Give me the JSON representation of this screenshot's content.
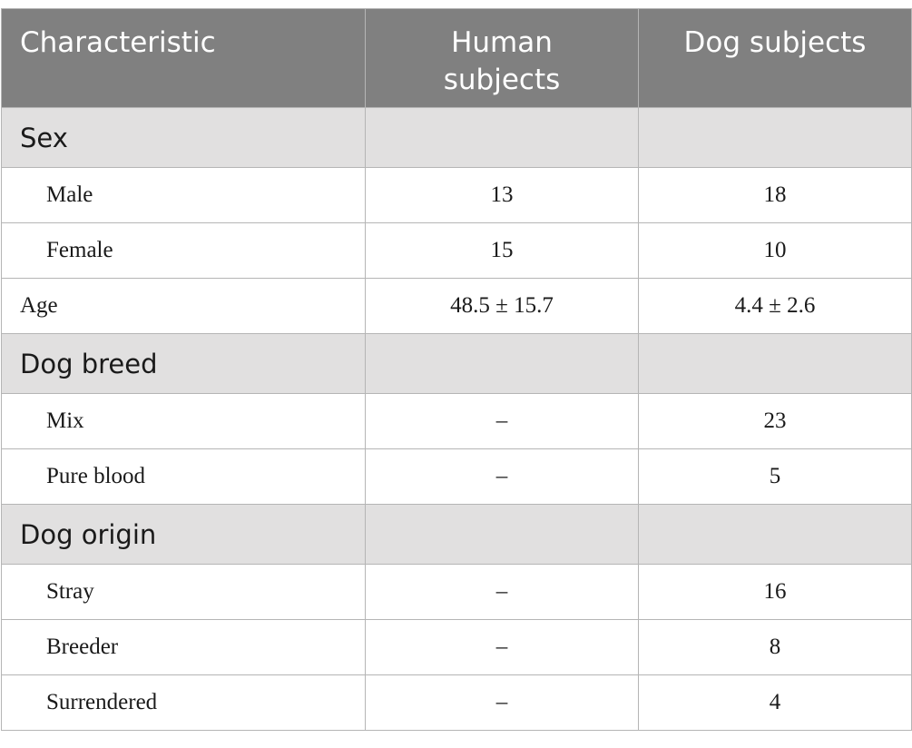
{
  "table": {
    "headers": [
      "Characteristic",
      "Human subjects",
      "Dog subjects"
    ],
    "sections": [
      {
        "group": "Sex",
        "rows": [
          {
            "label": "Male",
            "human": "13",
            "dog": "18"
          },
          {
            "label": "Female",
            "human": "15",
            "dog": "10"
          }
        ]
      },
      {
        "group": null,
        "rows": [
          {
            "label": "Age",
            "human": "48.5 ± 15.7",
            "dog": "4.4 ± 2.6"
          }
        ]
      },
      {
        "group": "Dog breed",
        "rows": [
          {
            "label": "Mix",
            "human": "–",
            "dog": "23"
          },
          {
            "label": "Pure blood",
            "human": "–",
            "dog": "5"
          }
        ]
      },
      {
        "group": "Dog origin",
        "rows": [
          {
            "label": "Stray",
            "human": "–",
            "dog": "16"
          },
          {
            "label": "Breeder",
            "human": "–",
            "dog": "8"
          },
          {
            "label": "Surrendered",
            "human": "–",
            "dog": "4"
          }
        ]
      }
    ]
  },
  "colors": {
    "header_bg": "#808080",
    "group_bg": "#e1e0e0",
    "border": "#b5b5b5"
  }
}
